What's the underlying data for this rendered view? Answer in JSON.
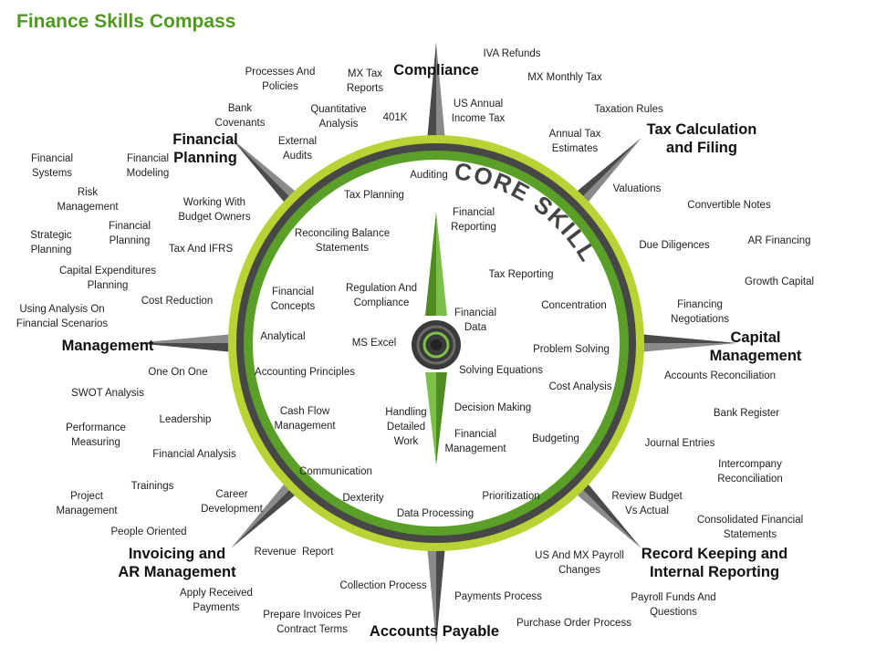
{
  "title": "Finance Skills Compass",
  "core_label": "CORE SKILLS",
  "colors": {
    "accent": "#4e9a1e",
    "lime": "#b7d334",
    "ring_dark": "#4a4a4a",
    "needle": "#5aa028"
  },
  "categories": [
    {
      "id": "compliance",
      "label": "Compliance"
    },
    {
      "id": "tax-calculation-and-filing",
      "label": "Tax Calculation\nand Filing"
    },
    {
      "id": "capital-management",
      "label": "Capital\nManagement"
    },
    {
      "id": "record-keeping",
      "label": "Record Keeping and\nInternal Reporting"
    },
    {
      "id": "accounts-payable",
      "label": "Accounts Payable"
    },
    {
      "id": "invoicing-ar",
      "label": "Invoicing and\nAR Management"
    },
    {
      "id": "management",
      "label": "Management"
    },
    {
      "id": "financial-planning",
      "label": "Financial\nPlanning"
    }
  ],
  "outer_skills": [
    "IVA Refunds",
    "Processes And\nPolicies",
    "MX Tax\nReports",
    "MX Monthly Tax",
    "Bank\nCovenants",
    "Quantitative\nAnalysis",
    "401K",
    "US Annual\nIncome Tax",
    "Taxation Rules",
    "Annual Tax\nEstimates",
    "External\nAudits",
    "Financial\nSystems",
    "Financial\nModeling",
    "Risk\nManagement",
    "Valuations",
    "Convertible Notes",
    "Strategic\nPlanning",
    "Financial\nPlanning",
    "Working With\nBudget Owners",
    "Tax And IFRS",
    "Due Diligences",
    "AR Financing",
    "Capital Expenditures\nPlanning",
    "Growth Capital",
    "Cost Reduction",
    "Financing\nNegotiations",
    "Using Analysis On\nFinancial Scenarios",
    "Accounts Reconciliation",
    "One On One",
    "SWOT Analysis",
    "Bank Register",
    "Performance\nMeasuring",
    "Leadership",
    "Journal Entries",
    "Financial Analysis",
    "Intercompany\nReconciliation",
    "Trainings",
    "Project\nManagement",
    "Career\nDevelopment",
    "Review Budget\nVs Actual",
    "Consolidated Financial\nStatements",
    "People Oriented",
    "Revenue  Report",
    "US And MX Payroll\nChanges",
    "Apply Received\nPayments",
    "Collection Process",
    "Payments Process",
    "Payroll Funds And\nQuestions",
    "Prepare Invoices Per\nContract Terms",
    "Purchase Order Process"
  ],
  "core_skills": [
    "Auditing",
    "Tax Planning",
    "Financial\nReporting",
    "Reconciling Balance\nStatements",
    "Tax Reporting",
    "Financial\nConcepts",
    "Regulation And\nCompliance",
    "Concentration",
    "Financial\nData",
    "Analytical",
    "MS Excel",
    "Problem Solving",
    "Accounting Principles",
    "Solving Equations",
    "Cost Analysis",
    "Cash Flow\nManagement",
    "Handling\nDetailed\nWork",
    "Decision Making",
    "Financial\nManagement",
    "Budgeting",
    "Communication",
    "Prioritization",
    "Dexterity",
    "Data Processing"
  ]
}
